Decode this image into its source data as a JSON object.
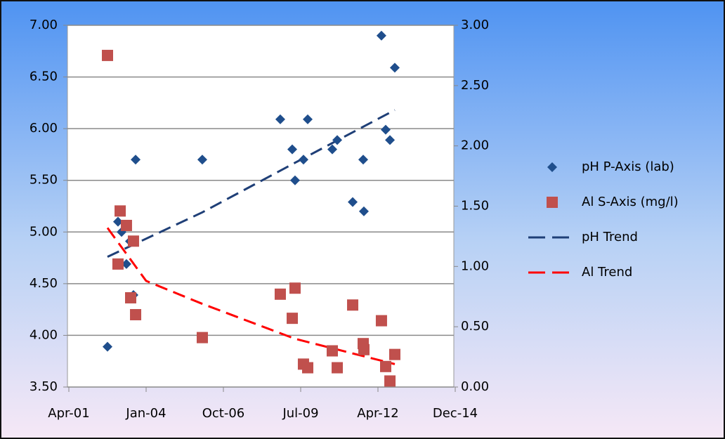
{
  "chart_data": {
    "type": "scatter",
    "xlim": [
      37000,
      42000
    ],
    "xticks": [
      {
        "value": 37000,
        "label": "Apr-01"
      },
      {
        "value": 38000,
        "label": "Jan-04"
      },
      {
        "value": 39000,
        "label": "Oct-06"
      },
      {
        "value": 40000,
        "label": "Jul-09"
      },
      {
        "value": 41000,
        "label": "Apr-12"
      },
      {
        "value": 42000,
        "label": "Dec-14"
      }
    ],
    "ylim": [
      3.5,
      7.0
    ],
    "yticks": [
      {
        "value": 3.5,
        "label": "3.50"
      },
      {
        "value": 4.0,
        "label": "4.00"
      },
      {
        "value": 4.5,
        "label": "4.50"
      },
      {
        "value": 5.0,
        "label": "5.00"
      },
      {
        "value": 5.5,
        "label": "5.50"
      },
      {
        "value": 6.0,
        "label": "6.00"
      },
      {
        "value": 6.5,
        "label": "6.50"
      },
      {
        "value": 7.0,
        "label": "7.00"
      }
    ],
    "y2lim": [
      0,
      3
    ],
    "y2ticks": [
      {
        "value": 0,
        "label": "0.00"
      },
      {
        "value": 0.5,
        "label": "0.50"
      },
      {
        "value": 1,
        "label": "1.00"
      },
      {
        "value": 1.5,
        "label": "1.50"
      },
      {
        "value": 2,
        "label": "2.00"
      },
      {
        "value": 2.5,
        "label": "2.50"
      },
      {
        "value": 3,
        "label": "3.00"
      }
    ],
    "grid": true,
    "legend": "right",
    "series": [
      {
        "name": "pH P-Axis (lab)",
        "color": "#1f4e8c",
        "marker": "diamond",
        "x": [
          37500,
          37636,
          37682,
          37745,
          37791,
          37836,
          37864,
          38727,
          39736,
          39891,
          39927,
          40036,
          40091,
          40409,
          40473,
          40673,
          40809,
          40818,
          41045,
          41100,
          41155,
          41218
        ],
        "values": [
          3.89,
          5.1,
          5.0,
          4.69,
          4.91,
          4.39,
          5.7,
          5.7,
          6.09,
          5.8,
          5.5,
          5.7,
          6.09,
          5.8,
          5.89,
          5.29,
          5.7,
          5.2,
          6.9,
          5.99,
          5.89,
          6.59
        ]
      },
      {
        "name": "Al S-Axis (mg/l)",
        "color": "#c0504d",
        "marker": "square",
        "axis": "y2",
        "x": [
          37500,
          37664,
          37745,
          37636,
          37836,
          37800,
          37864,
          38727,
          39736,
          39927,
          39891,
          40036,
          40091,
          40409,
          40473,
          40673,
          40809,
          40818,
          41045,
          41100,
          41155,
          41218
        ],
        "values": [
          2.75,
          1.46,
          1.34,
          1.02,
          1.21,
          0.74,
          0.6,
          0.41,
          0.77,
          0.82,
          0.57,
          0.19,
          0.16,
          0.3,
          0.16,
          0.68,
          0.36,
          0.31,
          0.55,
          0.17,
          0.05,
          0.27
        ]
      },
      {
        "name": "pH Trend",
        "color": "#1f3f77",
        "marker": "dash",
        "x": [
          37500,
          38727,
          39927,
          41218
        ],
        "values": [
          4.76,
          5.19,
          5.67,
          6.18
        ]
      },
      {
        "name": "Al Trend",
        "color": "#ff0000",
        "marker": "dash",
        "axis": "y2",
        "x": [
          37500,
          38000,
          38727,
          39927,
          41218
        ],
        "values": [
          1.32,
          0.88,
          0.69,
          0.4,
          0.19
        ]
      }
    ]
  }
}
